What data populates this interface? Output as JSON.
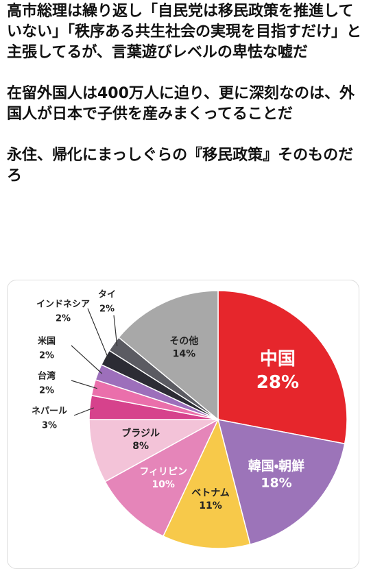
{
  "post": {
    "paragraphs": [
      "高市総理は繰り返し「自民党は移民政策を推進していない」「秩序ある共生社会の実現を目指すだけ」と主張してるが、言葉遊びレベルの卑怯な嘘だ",
      "在留外国人は400万人に迫り、更に深刻なのは、外国人が日本で子供を産みまくってることだ",
      "永住、帰化にまっしぐらの『移民政策』そのものだろ"
    ]
  },
  "chart_data": {
    "type": "pie",
    "categories": [
      "中国",
      "韓国・朝鮮",
      "ベトナム",
      "フィリピン",
      "ブラジル",
      "ネパール",
      "台湾",
      "米国",
      "インドネシア",
      "タイ",
      "その他"
    ],
    "values": [
      28,
      18,
      11,
      10,
      8,
      3,
      2,
      2,
      2,
      2,
      14
    ],
    "value_labels": [
      "28%",
      "18%",
      "11%",
      "10%",
      "8%",
      "3%",
      "2%",
      "2%",
      "2%",
      "2%",
      "14%"
    ],
    "colors": [
      "#e6262c",
      "#9c74b9",
      "#f7c94a",
      "#e585b9",
      "#f3c3d8",
      "#d6428c",
      "#ea6fab",
      "#9d6fbb",
      "#2c2c34",
      "#5b5b62",
      "#a8a8a8"
    ]
  }
}
